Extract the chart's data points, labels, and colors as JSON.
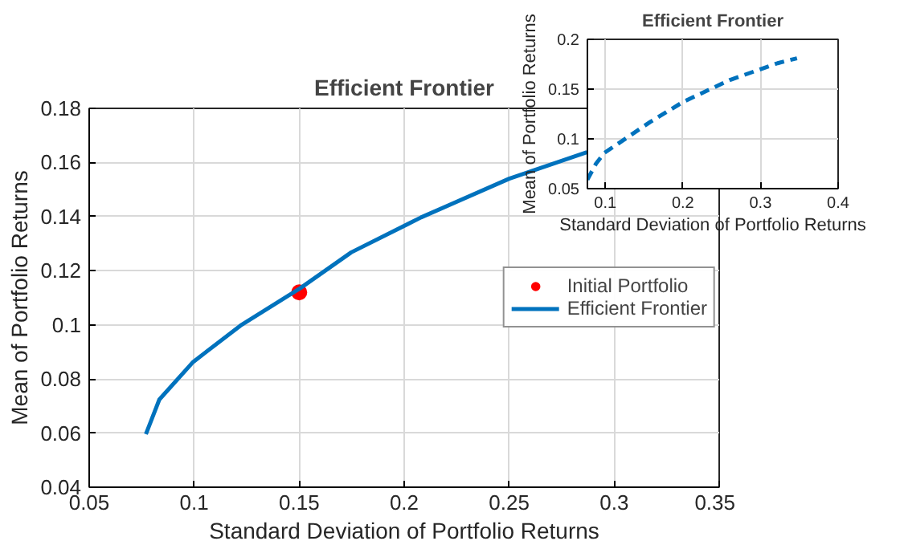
{
  "chart_data": [
    {
      "type": "line",
      "title": "Efficient Frontier",
      "xlabel": "Standard Deviation of Portfolio Returns",
      "ylabel": "Mean of Portfolio Returns",
      "xlim": [
        0.05,
        0.35
      ],
      "xticks": [
        0.05,
        0.1,
        0.15,
        0.2,
        0.25,
        0.3,
        0.35
      ],
      "ylim": [
        0.04,
        0.18
      ],
      "yticks": [
        0.04,
        0.06,
        0.08,
        0.1,
        0.12,
        0.14,
        0.16,
        0.18
      ],
      "grid": true,
      "legend": "right",
      "series": [
        {
          "name": "Initial Portfolio",
          "type": "scatter",
          "marker": "circle",
          "color": "#ff0000",
          "x": [
            0.15
          ],
          "values": [
            0.112
          ]
        },
        {
          "name": "Efficient Frontier",
          "type": "line",
          "color": "#0072bd",
          "x": [
            0.077,
            0.0834,
            0.0995,
            0.122,
            0.1506,
            0.1748,
            0.208,
            0.25,
            0.287
          ],
          "values": [
            0.0596,
            0.0724,
            0.0863,
            0.0997,
            0.1136,
            0.1268,
            0.1397,
            0.154,
            0.1638
          ]
        }
      ]
    },
    {
      "type": "line",
      "title": "Efficient Frontier",
      "xlabel": "Standard Deviation of Portfolio Returns",
      "ylabel": "Mean of Portfolio Returns",
      "xlim": [
        0.077,
        0.4
      ],
      "xticks": [
        0.1,
        0.2,
        0.3,
        0.4
      ],
      "ylim": [
        0.05,
        0.2
      ],
      "yticks": [
        0.05,
        0.1,
        0.15,
        0.2
      ],
      "grid": true,
      "line_style": "dashed",
      "series": [
        {
          "color": "#0072bd",
          "x": [
            0.077,
            0.088,
            0.099,
            0.158,
            0.2,
            0.26,
            0.322,
            0.347
          ],
          "values": [
            0.059,
            0.075,
            0.086,
            0.117,
            0.137,
            0.159,
            0.176,
            0.181
          ]
        }
      ]
    }
  ]
}
